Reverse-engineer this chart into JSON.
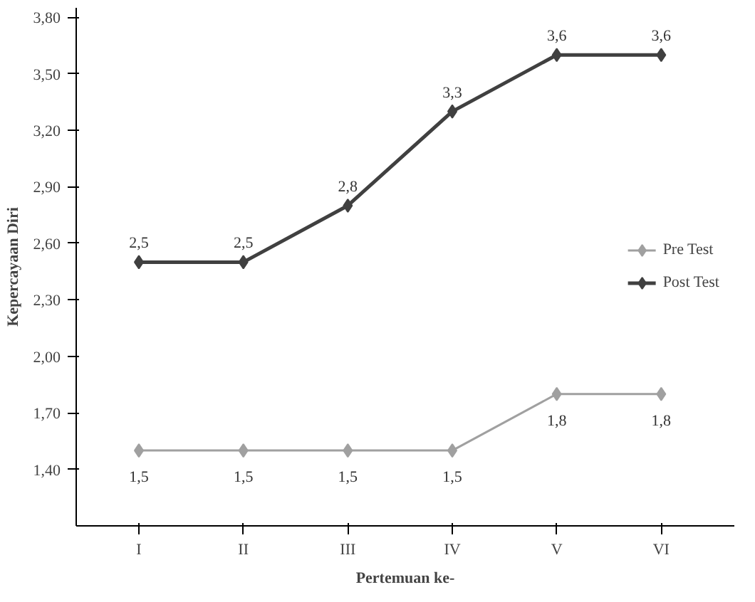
{
  "chart_data": {
    "type": "line",
    "xlabel": "Pertemuan ke-",
    "ylabel": "Kepercayaan Diri",
    "categories": [
      "I",
      "II",
      "III",
      "IV",
      "V",
      "VI"
    ],
    "series": [
      {
        "name": "Pre Test",
        "color": "#a0a0a0",
        "values": [
          1.5,
          1.5,
          1.5,
          1.5,
          1.8,
          1.8
        ],
        "value_labels": [
          "1,5",
          "1,5",
          "1,5",
          "1,5",
          "1,8",
          "1,8"
        ]
      },
      {
        "name": "Post Test",
        "color": "#404040",
        "values": [
          2.5,
          2.5,
          2.8,
          3.3,
          3.6,
          3.6
        ],
        "value_labels": [
          "2,5",
          "2,5",
          "2,8",
          "3,3",
          "3,6",
          "3,6"
        ]
      }
    ],
    "ylim": [
      1.1,
      3.85
    ],
    "yticks": [
      {
        "value": 1.4,
        "label": "1,40"
      },
      {
        "value": 1.7,
        "label": "1,70"
      },
      {
        "value": 2.0,
        "label": "2,00"
      },
      {
        "value": 2.3,
        "label": "2,30"
      },
      {
        "value": 2.6,
        "label": "2,60"
      },
      {
        "value": 2.9,
        "label": "2,90"
      },
      {
        "value": 3.2,
        "label": "3,20"
      },
      {
        "value": 3.5,
        "label": "3,50"
      },
      {
        "value": 3.8,
        "label": "3,80"
      }
    ],
    "marker": "diamond",
    "line_style": "solid",
    "legend": "right",
    "grid": false
  }
}
